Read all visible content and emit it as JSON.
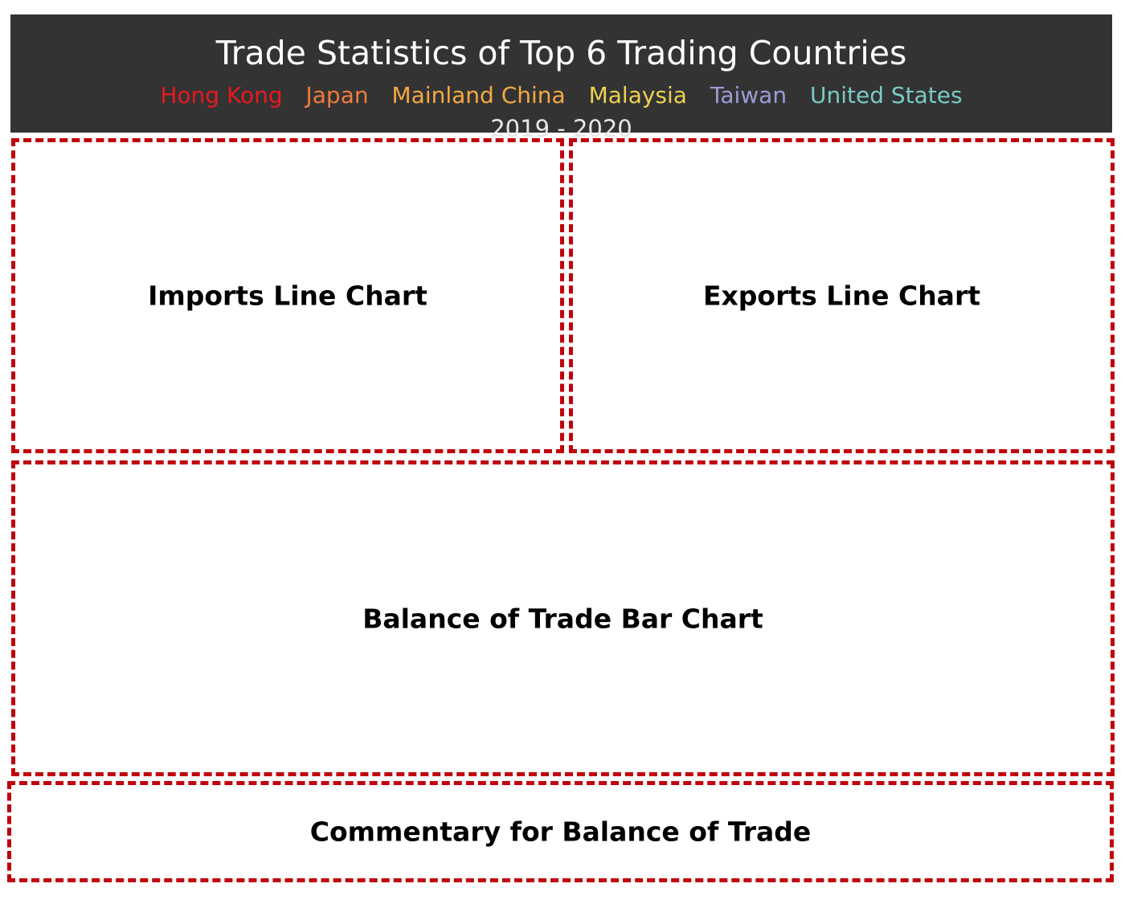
{
  "header": {
    "title": "Trade Statistics of Top 6 Trading Countries",
    "countries": [
      {
        "name": "Hong Kong",
        "color": "#e8191f"
      },
      {
        "name": "Japan",
        "color": "#f07c3d"
      },
      {
        "name": "Mainland China",
        "color": "#f6a940"
      },
      {
        "name": "Malaysia",
        "color": "#eed152"
      },
      {
        "name": "Taiwan",
        "color": "#9c9cd8"
      },
      {
        "name": "United States",
        "color": "#78cbc4"
      }
    ],
    "years": "2019 - 2020"
  },
  "panels": {
    "imports": "Imports Line Chart",
    "exports": "Exports Line Chart",
    "balance": "Balance of Trade Bar Chart",
    "commentary": "Commentary for Balance of Trade"
  },
  "colors": {
    "header_bg": "#333333",
    "placeholder_border": "#c0000b"
  }
}
